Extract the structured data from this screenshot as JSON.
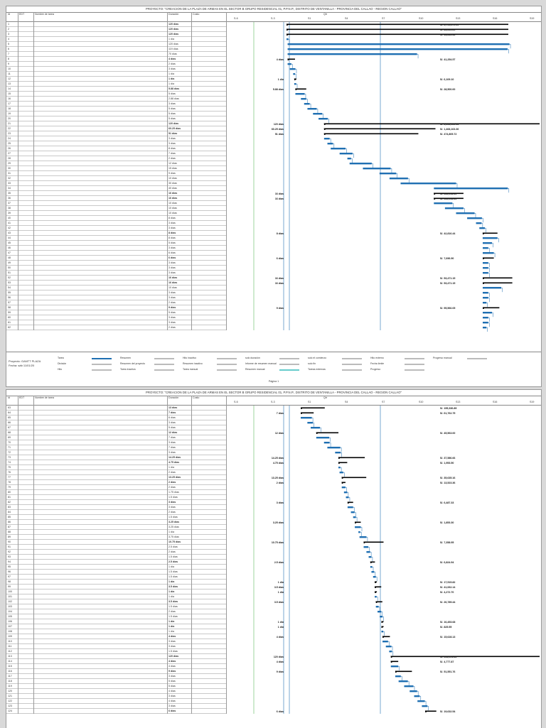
{
  "project_title": "PROYECTO: \"CREACION DE LA PLAZA DE ARMAS EN EL SECTOR B GRUPO RESIDENCIAL 01, P.P.N.P., DISTRITO DE VENTANILLA - PROVINCIA DEL CALLAO - REGION CALLAO\"",
  "columns": {
    "id": "Id",
    "edt": "EDT",
    "name": "Nombre de tarea",
    "duration": "Duración",
    "start": "Costo"
  },
  "timescale": {
    "top": "Qtr",
    "marks": [
      "S-6",
      "S-3",
      "S1",
      "S4",
      "S7",
      "S10",
      "S13",
      "S16",
      "S19"
    ]
  },
  "page1": {
    "rows": [
      {
        "id": "1",
        "dur": "120 días",
        "b": true
      },
      {
        "id": "2",
        "dur": "120 días",
        "b": true
      },
      {
        "id": "3",
        "dur": "120 días",
        "b": true
      },
      {
        "id": "4",
        "dur": "1 día",
        "b": false
      },
      {
        "id": "5",
        "dur": "120 días",
        "b": false
      },
      {
        "id": "6",
        "dur": "119 días",
        "b": false
      },
      {
        "id": "7",
        "dur": "70 días",
        "b": false
      },
      {
        "id": "8",
        "dur": "4 días",
        "b": true
      },
      {
        "id": "9",
        "dur": "2 días",
        "b": false
      },
      {
        "id": "10",
        "dur": "3 días",
        "b": false
      },
      {
        "id": "11",
        "dur": "1 día",
        "b": false
      },
      {
        "id": "12",
        "dur": "1 día",
        "b": true
      },
      {
        "id": "13",
        "dur": "1 día",
        "b": false
      },
      {
        "id": "14",
        "dur": "5.88 días",
        "b": true
      },
      {
        "id": "15",
        "dur": "5 días",
        "b": false
      },
      {
        "id": "16",
        "dur": "2.88 días",
        "b": false
      },
      {
        "id": "17",
        "dur": "3 días",
        "b": false
      },
      {
        "id": "18",
        "dur": "5 días",
        "b": false
      },
      {
        "id": "19",
        "dur": "5 días",
        "b": false
      },
      {
        "id": "20",
        "dur": "5 días",
        "b": false
      },
      {
        "id": "21",
        "dur": "120 días",
        "b": true
      },
      {
        "id": "22",
        "dur": "60.25 días",
        "b": true
      },
      {
        "id": "23",
        "dur": "51 días",
        "b": true
      },
      {
        "id": "24",
        "dur": "3 días",
        "b": false
      },
      {
        "id": "25",
        "dur": "3 días",
        "b": false
      },
      {
        "id": "26",
        "dur": "8 días",
        "b": false
      },
      {
        "id": "27",
        "dur": "7 días",
        "b": false
      },
      {
        "id": "28",
        "dur": "2 días",
        "b": false
      },
      {
        "id": "29",
        "dur": "12 días",
        "b": false
      },
      {
        "id": "30",
        "dur": "15 días",
        "b": false
      },
      {
        "id": "31",
        "dur": "9 días",
        "b": false
      },
      {
        "id": "32",
        "dur": "10 días",
        "b": false
      },
      {
        "id": "33",
        "dur": "30 días",
        "b": false
      },
      {
        "id": "34",
        "dur": "40 días",
        "b": false
      },
      {
        "id": "35",
        "dur": "16 días",
        "b": true
      },
      {
        "id": "36",
        "dur": "16 días",
        "b": true
      },
      {
        "id": "37",
        "dur": "10 días",
        "b": false
      },
      {
        "id": "38",
        "dur": "10 días",
        "b": false
      },
      {
        "id": "39",
        "dur": "10 días",
        "b": false
      },
      {
        "id": "40",
        "dur": "8 días",
        "b": false
      },
      {
        "id": "41",
        "dur": "3 días",
        "b": false
      },
      {
        "id": "42",
        "dur": "3 días",
        "b": false
      },
      {
        "id": "43",
        "dur": "8 días",
        "b": true
      },
      {
        "id": "44",
        "dur": "8 días",
        "b": false
      },
      {
        "id": "45",
        "dur": "5 días",
        "b": false
      },
      {
        "id": "46",
        "dur": "3 días",
        "b": false
      },
      {
        "id": "47",
        "dur": "6 días",
        "b": false
      },
      {
        "id": "48",
        "dur": "6 días",
        "b": true
      },
      {
        "id": "49",
        "dur": "3 días",
        "b": false
      },
      {
        "id": "50",
        "dur": "3 días",
        "b": false
      },
      {
        "id": "51",
        "dur": "3 días",
        "b": false
      },
      {
        "id": "52",
        "dur": "16 días",
        "b": true
      },
      {
        "id": "53",
        "dur": "16 días",
        "b": true
      },
      {
        "id": "54",
        "dur": "10 días",
        "b": false
      },
      {
        "id": "55",
        "dur": "3 días",
        "b": false
      },
      {
        "id": "56",
        "dur": "3 días",
        "b": false
      },
      {
        "id": "57",
        "dur": "2 días",
        "b": false
      },
      {
        "id": "58",
        "dur": "9 días",
        "b": true
      },
      {
        "id": "59",
        "dur": "5 días",
        "b": false
      },
      {
        "id": "60",
        "dur": "3 días",
        "b": false
      },
      {
        "id": "61",
        "dur": "3 días",
        "b": false
      },
      {
        "id": "62",
        "dur": "2 días",
        "b": false
      }
    ],
    "labels": [
      {
        "r": 1,
        "text": "S/. 2,796,470.49",
        "cost": true
      },
      {
        "r": 2,
        "text": "S/. 86,649.29",
        "cost": true
      },
      {
        "r": 3,
        "text": "S/. 16,630.62",
        "cost": true
      },
      {
        "r": 8,
        "text": "4 días",
        "cost": false
      },
      {
        "r": 8,
        "text": "S/. 41,254.57",
        "cost": true
      },
      {
        "r": 12,
        "text": "1 día",
        "cost": false
      },
      {
        "r": 12,
        "text": "S/. 6,109.10",
        "cost": true
      },
      {
        "r": 14,
        "text": "5.88 días",
        "cost": false
      },
      {
        "r": 14,
        "text": "S/. 28,500.00",
        "cost": true
      },
      {
        "r": 21,
        "text": "120 días",
        "cost": false
      },
      {
        "r": 21,
        "text": "S/. 2,644,025.13",
        "cost": true
      },
      {
        "r": 22,
        "text": "60.25 días",
        "cost": false
      },
      {
        "r": 22,
        "text": "S/. 1,468,163.36",
        "cost": true
      },
      {
        "r": 23,
        "text": "51 días",
        "cost": false
      },
      {
        "r": 23,
        "text": "S/. 474,805.72",
        "cost": true
      },
      {
        "r": 35,
        "text": "16 días",
        "cost": false
      },
      {
        "r": 35,
        "text": "S/. 535,998.19",
        "cost": true
      },
      {
        "r": 36,
        "text": "16 días",
        "cost": false
      },
      {
        "r": 36,
        "text": "S/. 535,998.19",
        "cost": true
      },
      {
        "r": 43,
        "text": "8 días",
        "cost": false
      },
      {
        "r": 43,
        "text": "S/. 42,816.44",
        "cost": true
      },
      {
        "r": 48,
        "text": "6 días",
        "cost": false
      },
      {
        "r": 48,
        "text": "S/. 7,696.90",
        "cost": true
      },
      {
        "r": 52,
        "text": "16 días",
        "cost": false
      },
      {
        "r": 52,
        "text": "S/. 53,471.15",
        "cost": true
      },
      {
        "r": 53,
        "text": "16 días",
        "cost": false
      },
      {
        "r": 53,
        "text": "S/. 53,471.15",
        "cost": true
      },
      {
        "r": 58,
        "text": "9 días",
        "cost": false
      },
      {
        "r": 58,
        "text": "S/. 95,566.05",
        "cost": true
      }
    ]
  },
  "page2": {
    "rows": [
      {
        "id": "63",
        "dur": "13 días",
        "b": true
      },
      {
        "id": "64",
        "dur": "7 días",
        "b": true
      },
      {
        "id": "65",
        "dur": "6 días",
        "b": false
      },
      {
        "id": "66",
        "dur": "3 días",
        "b": false
      },
      {
        "id": "67",
        "dur": "5 días",
        "b": false
      },
      {
        "id": "68",
        "dur": "12 días",
        "b": true
      },
      {
        "id": "69",
        "dur": "7 días",
        "b": false
      },
      {
        "id": "70",
        "dur": "3 días",
        "b": false
      },
      {
        "id": "71",
        "dur": "7 días",
        "b": false
      },
      {
        "id": "72",
        "dur": "3 días",
        "b": false
      },
      {
        "id": "73",
        "dur": "14.25 días",
        "b": true
      },
      {
        "id": "74",
        "dur": "4.75 días",
        "b": true
      },
      {
        "id": "75",
        "dur": "1 día",
        "b": false
      },
      {
        "id": "76",
        "dur": "2 días",
        "b": false
      },
      {
        "id": "77",
        "dur": "13.25 días",
        "b": true
      },
      {
        "id": "78",
        "dur": "2 días",
        "b": true
      },
      {
        "id": "79",
        "dur": "2 días",
        "b": false
      },
      {
        "id": "80",
        "dur": "1.75 días",
        "b": false
      },
      {
        "id": "81",
        "dur": "1.5 días",
        "b": false
      },
      {
        "id": "82",
        "dur": "3 días",
        "b": true
      },
      {
        "id": "83",
        "dur": "3 días",
        "b": false
      },
      {
        "id": "84",
        "dur": "2 días",
        "b": false
      },
      {
        "id": "85",
        "dur": "1.5 días",
        "b": false
      },
      {
        "id": "86",
        "dur": "3.25 días",
        "b": true
      },
      {
        "id": "87",
        "dur": "3.25 días",
        "b": false
      },
      {
        "id": "88",
        "dur": "1 día",
        "b": false
      },
      {
        "id": "89",
        "dur": "3.75 días",
        "b": false
      },
      {
        "id": "90",
        "dur": "10.75 días",
        "b": true
      },
      {
        "id": "91",
        "dur": "2.5 días",
        "b": false
      },
      {
        "id": "92",
        "dur": "2 días",
        "b": false
      },
      {
        "id": "93",
        "dur": "1.5 días",
        "b": false
      },
      {
        "id": "94",
        "dur": "2.5 días",
        "b": true
      },
      {
        "id": "95",
        "dur": "1 día",
        "b": false
      },
      {
        "id": "96",
        "dur": "1.5 días",
        "b": false
      },
      {
        "id": "97",
        "dur": "1.5 días",
        "b": false
      },
      {
        "id": "98",
        "dur": "1 día",
        "b": true
      },
      {
        "id": "99",
        "dur": "3.5 días",
        "b": true
      },
      {
        "id": "100",
        "dur": "1 día",
        "b": true
      },
      {
        "id": "101",
        "dur": "1 día",
        "b": false
      },
      {
        "id": "102",
        "dur": "3.5 días",
        "b": true
      },
      {
        "id": "103",
        "dur": "1.5 días",
        "b": false
      },
      {
        "id": "104",
        "dur": "2 días",
        "b": false
      },
      {
        "id": "105",
        "dur": "1.5 días",
        "b": false
      },
      {
        "id": "106",
        "dur": "1 día",
        "b": true
      },
      {
        "id": "107",
        "dur": "1 día",
        "b": true
      },
      {
        "id": "108",
        "dur": "1 día",
        "b": false
      },
      {
        "id": "109",
        "dur": "4 días",
        "b": true
      },
      {
        "id": "110",
        "dur": "3 días",
        "b": false
      },
      {
        "id": "111",
        "dur": "3 días",
        "b": false
      },
      {
        "id": "112",
        "dur": "1.5 días",
        "b": false
      },
      {
        "id": "113",
        "dur": "120 días",
        "b": true
      },
      {
        "id": "114",
        "dur": "4 días",
        "b": true
      },
      {
        "id": "115",
        "dur": "4 días",
        "b": false
      },
      {
        "id": "116",
        "dur": "9 días",
        "b": true
      },
      {
        "id": "117",
        "dur": "3 días",
        "b": false
      },
      {
        "id": "118",
        "dur": "5 días",
        "b": false
      },
      {
        "id": "119",
        "dur": "5 días",
        "b": false
      },
      {
        "id": "120",
        "dur": "4 días",
        "b": false
      },
      {
        "id": "121",
        "dur": "3 días",
        "b": false
      },
      {
        "id": "122",
        "dur": "4 días",
        "b": false
      },
      {
        "id": "123",
        "dur": "3 días",
        "b": false
      },
      {
        "id": "124",
        "dur": "6 días",
        "b": true
      }
    ],
    "labels": [
      {
        "r": 1,
        "text": "S/. 155,336.89",
        "cost": true
      },
      {
        "r": 2,
        "text": "7 días",
        "cost": false
      },
      {
        "r": 2,
        "text": "S/. 61,762.75",
        "cost": true
      },
      {
        "r": 6,
        "text": "12 días",
        "cost": false
      },
      {
        "r": 6,
        "text": "S/. 45,563.00",
        "cost": true
      },
      {
        "r": 11,
        "text": "14.25 días",
        "cost": false
      },
      {
        "r": 11,
        "text": "S/. 37,586.66",
        "cost": true
      },
      {
        "r": 12,
        "text": "4.75 días",
        "cost": false
      },
      {
        "r": 12,
        "text": "S/. 1,953.50",
        "cost": true
      },
      {
        "r": 15,
        "text": "13.25 días",
        "cost": false
      },
      {
        "r": 15,
        "text": "S/. 35,635.16",
        "cost": true
      },
      {
        "r": 16,
        "text": "2 días",
        "cost": false
      },
      {
        "r": 16,
        "text": "S/. 13,523.36",
        "cost": true
      },
      {
        "r": 20,
        "text": "3 días",
        "cost": false
      },
      {
        "r": 20,
        "text": "S/. 6,487.33",
        "cost": true
      },
      {
        "r": 24,
        "text": "3.25 días",
        "cost": false
      },
      {
        "r": 24,
        "text": "S/. 1,853.30",
        "cost": true
      },
      {
        "r": 28,
        "text": "10.75 días",
        "cost": false
      },
      {
        "r": 28,
        "text": "S/. 7,358.95",
        "cost": true
      },
      {
        "r": 32,
        "text": "2.5 días",
        "cost": false
      },
      {
        "r": 32,
        "text": "S/. 6,824.94",
        "cost": true
      },
      {
        "r": 36,
        "text": "1 día",
        "cost": false
      },
      {
        "r": 36,
        "text": "S/. 17,515.82",
        "cost": true
      },
      {
        "r": 37,
        "text": "3.5 días",
        "cost": false
      },
      {
        "r": 37,
        "text": "S/. 41,062.14",
        "cost": true
      },
      {
        "r": 38,
        "text": "1 día",
        "cost": false
      },
      {
        "r": 38,
        "text": "S/. 4,272.70",
        "cost": true
      },
      {
        "r": 40,
        "text": "3.5 días",
        "cost": false
      },
      {
        "r": 40,
        "text": "S/. 26,789.44",
        "cost": true
      },
      {
        "r": 44,
        "text": "1 día",
        "cost": false
      },
      {
        "r": 44,
        "text": "S/. 16,453.68",
        "cost": true
      },
      {
        "r": 45,
        "text": "1 día",
        "cost": false
      },
      {
        "r": 45,
        "text": "S/. 825.55",
        "cost": true
      },
      {
        "r": 47,
        "text": "4 días",
        "cost": false
      },
      {
        "r": 47,
        "text": "S/. 15,628.13",
        "cost": true
      },
      {
        "r": 51,
        "text": "120 días",
        "cost": false
      },
      {
        "r": 51,
        "text": "S/. 408,901.35",
        "cost": true
      },
      {
        "r": 52,
        "text": "4 días",
        "cost": false
      },
      {
        "r": 52,
        "text": "S/. 4,777.87",
        "cost": true
      },
      {
        "r": 54,
        "text": "9 días",
        "cost": false
      },
      {
        "r": 54,
        "text": "S/. 51,551.76",
        "cost": true
      },
      {
        "r": 62,
        "text": "6 días",
        "cost": false
      },
      {
        "r": 62,
        "text": "S/. 19,632.54",
        "cost": true
      }
    ]
  },
  "footer": {
    "project": "Proyecto: GANTT PLAZA",
    "date": "Fecha: sáb 11/01/20",
    "page_label": "Página 1",
    "legend": [
      [
        "Tarea",
        "Resumen",
        "Hito inactivo",
        "solo duración",
        "solo el comienzo",
        "Hito externo",
        "Progreso manual"
      ],
      [
        "División",
        "Resumen del proyecto",
        "Resumen inactivo",
        "Informe de resumen manual",
        "solo fin",
        "Fecha límite",
        ""
      ],
      [
        "Hito",
        "Tarea inactiva",
        "Tarea manual",
        "Resumen manual",
        "Tareas externas",
        "Progreso",
        ""
      ]
    ]
  },
  "colors": {
    "bar": "#1f6fb2",
    "summary": "#000000",
    "link": "#1f6fb2",
    "green_line": "#5cb85c"
  }
}
